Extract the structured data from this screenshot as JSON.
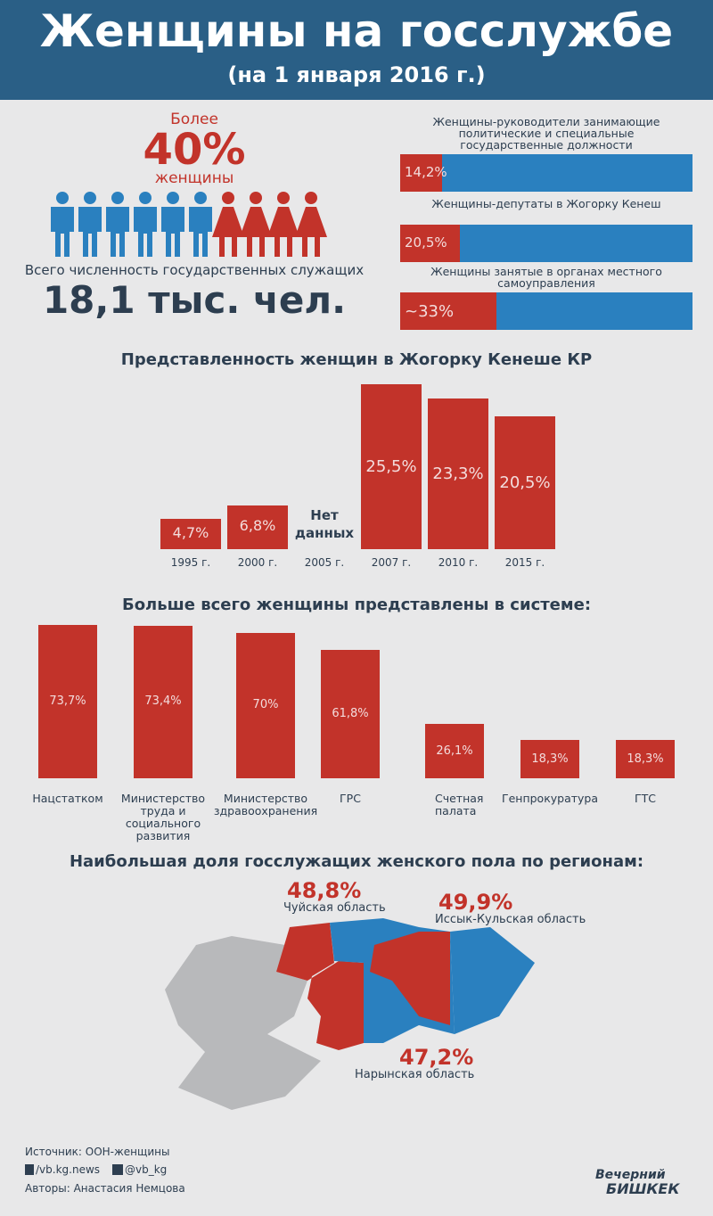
{
  "header": {
    "title": "Женщины на госслужбе",
    "subtitle": "(на 1 января 2016 г.)"
  },
  "summary": {
    "prefix": "Более",
    "share": "40%",
    "suffix": "женщины",
    "total_label": "Всего численность государственных служащих",
    "total": "18,1 тыс. чел."
  },
  "shares": [
    {
      "label": "Женщины-руководители занимающие политические и специальные государственные должности",
      "value": 14.2,
      "value_label": "14,2%"
    },
    {
      "label": "Женщины-депутаты в Жогорку Кенеш",
      "value": 20.5,
      "value_label": "20,5%"
    },
    {
      "label": "Женщины занятые в органах местного самоуправления",
      "value": 33,
      "value_label": "~33%"
    }
  ],
  "parliament": {
    "title": "Представленность женщин в Жогорку Кенеше КР",
    "categories": [
      "1995 г.",
      "2000 г.",
      "2005 г.",
      "2007 г.",
      "2010 г.",
      "2015 г."
    ],
    "values": [
      4.7,
      6.8,
      null,
      25.5,
      23.3,
      20.5
    ],
    "value_labels": [
      "4,7%",
      "6,8%",
      "Нет данных",
      "25,5%",
      "23,3%",
      "20,5%"
    ]
  },
  "systems": {
    "title": "Больше всего женщины представлены в системе:",
    "categories": [
      "Нацстатком",
      "Министерство труда и социального развития",
      "Министерство здравоохранения",
      "ГРС",
      "Счетная палата",
      "Генпрокуратура",
      "ГТС"
    ],
    "values": [
      73.7,
      73.4,
      70,
      61.8,
      26.1,
      18.3,
      18.3
    ],
    "value_labels": [
      "73,7%",
      "73,4%",
      "70%",
      "61,8%",
      "26,1%",
      "18,3%",
      "18,3%"
    ]
  },
  "regions": {
    "title": "Наибольшая доля госслужащих женского пола по регионам:",
    "items": [
      {
        "name": "Чуйская область",
        "value": 48.8,
        "value_label": "48,8%"
      },
      {
        "name": "Иссык-Кульская область",
        "value": 49.9,
        "value_label": "49,9%"
      },
      {
        "name": "Нарынская область",
        "value": 47.2,
        "value_label": "47,2%"
      }
    ]
  },
  "footer": {
    "source": "Источник: ООН-женщины",
    "facebook": "/vb.kg.news",
    "twitter": "@vb_kg",
    "authors": "Авторы: Анастасия Немцова",
    "logo_top": "Вечерний",
    "logo_bottom": "БИШКЕК"
  }
}
